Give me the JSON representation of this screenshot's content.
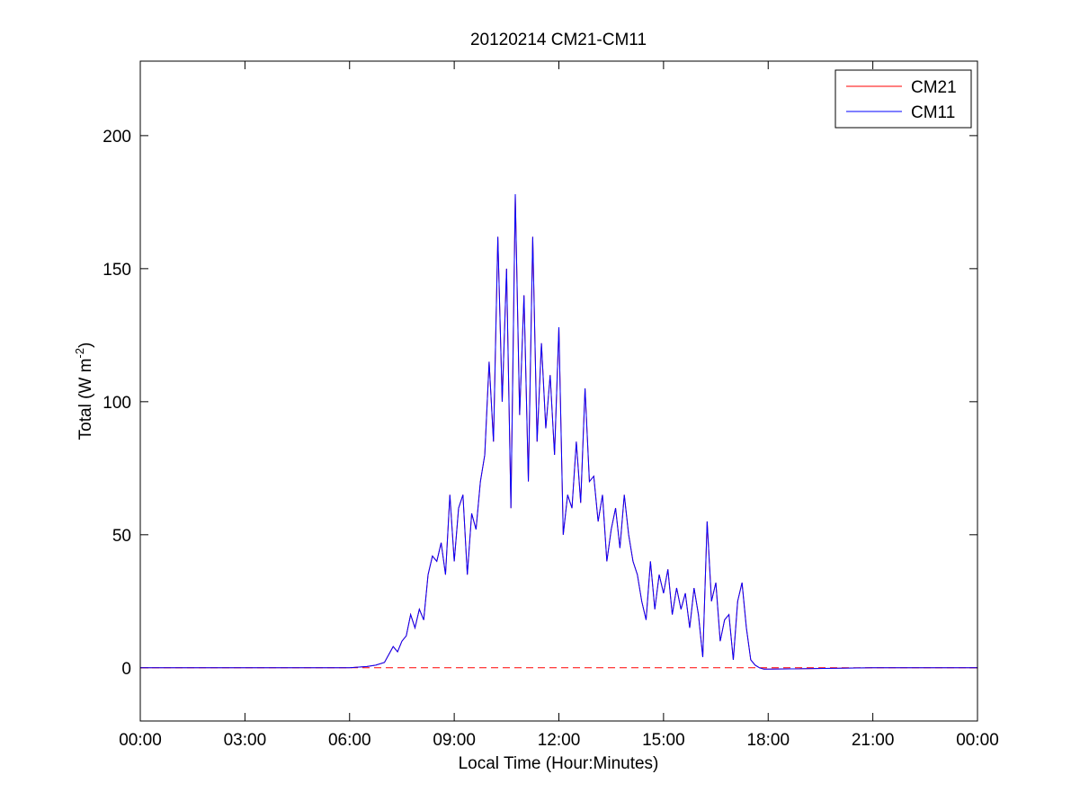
{
  "chart_data": {
    "type": "line",
    "title": "20120214 CM21-CM11",
    "xlabel": "Local Time (Hour:Minutes)",
    "ylabel": [
      "Total (W m",
      "-2",
      ")"
    ],
    "xlim": [
      0,
      24
    ],
    "ylim": [
      -20,
      228
    ],
    "xticks": [
      {
        "value": 0,
        "label": "00:00"
      },
      {
        "value": 3,
        "label": "03:00"
      },
      {
        "value": 6,
        "label": "06:00"
      },
      {
        "value": 9,
        "label": "09:00"
      },
      {
        "value": 12,
        "label": "12:00"
      },
      {
        "value": 15,
        "label": "15:00"
      },
      {
        "value": 18,
        "label": "18:00"
      },
      {
        "value": 21,
        "label": "21:00"
      },
      {
        "value": 24,
        "label": "00:00"
      }
    ],
    "yticks": [
      0,
      50,
      100,
      150,
      200
    ],
    "hline": 0,
    "hline_color": "#ff0000",
    "legend": "top-right",
    "x": [
      0,
      3,
      6,
      6.5,
      6.75,
      7,
      7.125,
      7.25,
      7.375,
      7.5,
      7.625,
      7.75,
      7.875,
      8,
      8.125,
      8.25,
      8.375,
      8.5,
      8.625,
      8.75,
      8.875,
      9,
      9.125,
      9.25,
      9.375,
      9.5,
      9.625,
      9.75,
      9.875,
      10,
      10.125,
      10.25,
      10.375,
      10.5,
      10.625,
      10.75,
      10.875,
      11,
      11.125,
      11.25,
      11.375,
      11.5,
      11.625,
      11.75,
      11.875,
      12,
      12.125,
      12.25,
      12.375,
      12.5,
      12.625,
      12.75,
      12.875,
      13,
      13.125,
      13.25,
      13.375,
      13.5,
      13.625,
      13.75,
      13.875,
      14,
      14.125,
      14.25,
      14.375,
      14.5,
      14.625,
      14.75,
      14.875,
      15,
      15.125,
      15.25,
      15.375,
      15.5,
      15.625,
      15.75,
      15.875,
      16,
      16.125,
      16.25,
      16.375,
      16.5,
      16.625,
      16.75,
      16.875,
      17,
      17.125,
      17.25,
      17.375,
      17.5,
      17.625,
      17.75,
      17.875,
      18,
      21,
      24
    ],
    "series": [
      {
        "name": "CM21",
        "color": "#ff0000",
        "values": [
          0,
          0,
          0,
          0.5,
          1,
          2,
          5,
          8,
          6,
          10,
          12,
          20,
          15,
          22,
          18,
          35,
          42,
          40,
          47,
          35,
          65,
          40,
          60,
          65,
          35,
          58,
          52,
          70,
          80,
          115,
          85,
          162,
          100,
          150,
          60,
          178,
          95,
          140,
          70,
          162,
          85,
          122,
          90,
          110,
          80,
          128,
          50,
          65,
          60,
          85,
          62,
          105,
          70,
          72,
          55,
          65,
          40,
          52,
          60,
          45,
          65,
          50,
          40,
          35,
          25,
          18,
          40,
          22,
          35,
          28,
          37,
          20,
          30,
          22,
          28,
          15,
          30,
          20,
          4,
          55,
          25,
          32,
          10,
          18,
          20,
          3,
          25,
          32,
          15,
          3,
          1,
          0,
          -0.5,
          -0.5,
          0,
          0
        ]
      },
      {
        "name": "CM11",
        "color": "#0000ff",
        "values": [
          0,
          0,
          0,
          0.5,
          1,
          2,
          5,
          8,
          6,
          10,
          12,
          20,
          15,
          22,
          18,
          35,
          42,
          40,
          47,
          35,
          65,
          40,
          60,
          65,
          35,
          58,
          52,
          70,
          80,
          115,
          85,
          162,
          100,
          150,
          60,
          178,
          95,
          140,
          70,
          162,
          85,
          122,
          90,
          110,
          80,
          128,
          50,
          65,
          60,
          85,
          62,
          105,
          70,
          72,
          55,
          65,
          40,
          52,
          60,
          45,
          65,
          50,
          40,
          35,
          25,
          18,
          40,
          22,
          35,
          28,
          37,
          20,
          30,
          22,
          28,
          15,
          30,
          20,
          4,
          55,
          25,
          32,
          10,
          18,
          20,
          3,
          25,
          32,
          15,
          3,
          1,
          0,
          -0.5,
          -0.5,
          0,
          0
        ]
      }
    ]
  }
}
